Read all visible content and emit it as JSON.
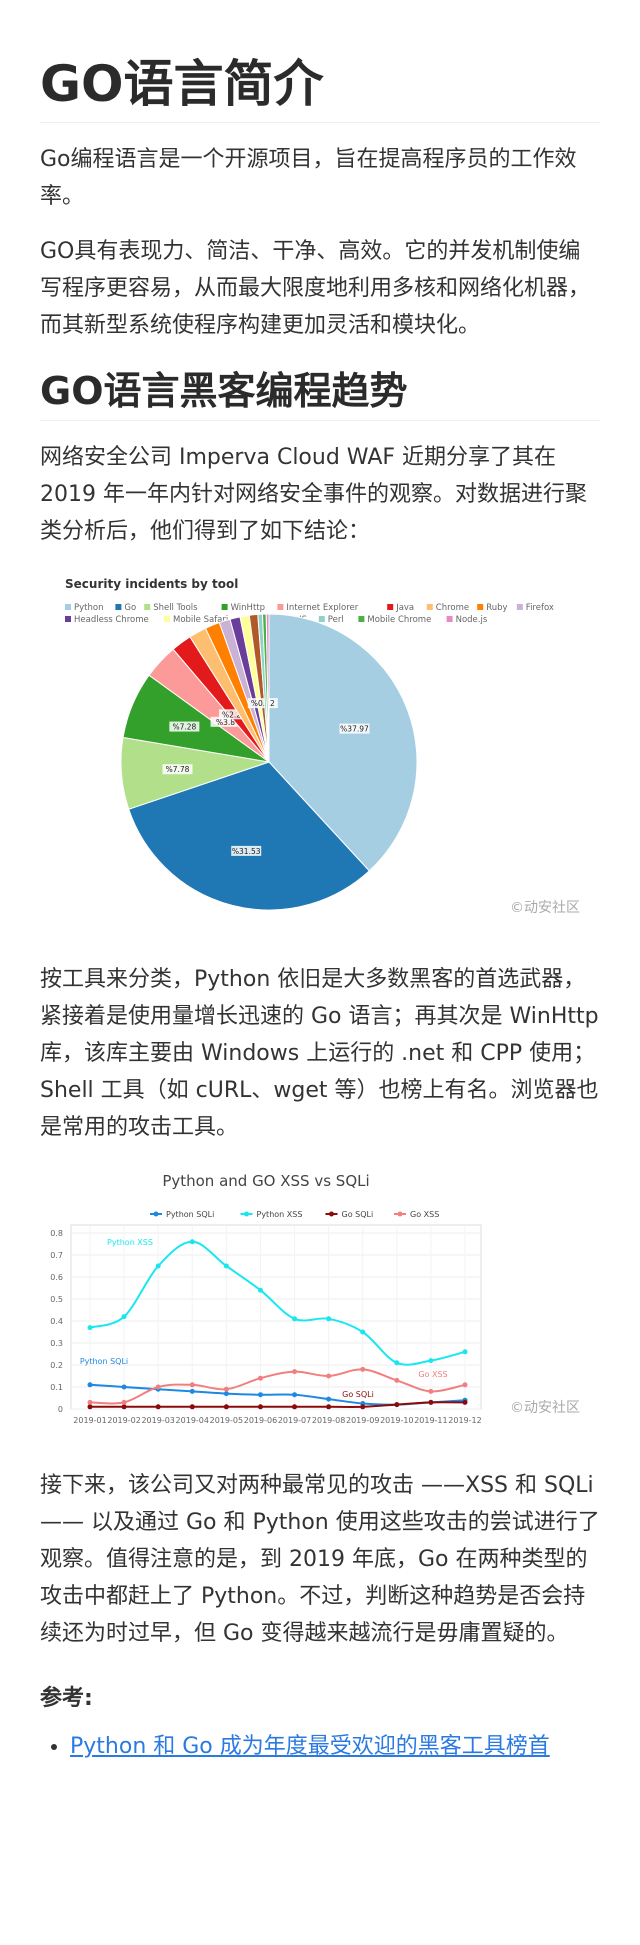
{
  "header": {
    "title": "GO语言简介"
  },
  "intro": [
    "Go编程语言是一个开源项目，旨在提高程序员的工作效率。",
    "GO具有表现力、简洁、干净、高效。它的并发机制使编写程序更容易，从而最大限度地利用多核和网络化机器，而其新型系统使程序构建更加灵活和模块化。"
  ],
  "section": {
    "title": "GO语言黑客编程趋势",
    "paragraphs": [
      "网络安全公司 Imperva Cloud WAF 近期分享了其在 2019 年一年内针对网络安全事件的观察。对数据进行聚类分析后，他们得到了如下结论：",
      "按工具来分类，Python 依旧是大多数黑客的首选武器，紧接着是使用量增长迅速的 Go 语言；再其次是 WinHttp 库，该库主要由 Windows 上运行的 .net 和 CPP 使用；Shell 工具（如 cURL、wget 等）也榜上有名。浏览器也是常用的攻击工具。",
      "接下来，该公司又对两种最常见的攻击 ——XSS 和 SQLi—— 以及通过 Go 和 Python 使用这些攻击的尝试进行了观察。值得注意的是，到 2019 年底，Go 在两种类型的攻击中都赶上了 Python。不过，判断这种趋势是否会持续还为时过早，但 Go 变得越来越流行是毋庸置疑的。"
    ]
  },
  "chart_data": [
    {
      "type": "pie",
      "title": "Security incidents by tool",
      "categories": [
        "Python",
        "Go",
        "Shell Tools",
        "WinHttp",
        "Internet Explorer",
        "Java",
        "Chrome",
        "Ruby",
        "Firefox",
        "Headless Chrome",
        "Mobile Safari",
        "PhantomJS",
        "Perl",
        "Mobile Chrome",
        "Node.js"
      ],
      "values": [
        37.97,
        31.53,
        7.78,
        7.28,
        3.8,
        2.24,
        1.9,
        1.6,
        1.2,
        1.1,
        1.0,
        0.92,
        0.5,
        0.4,
        0.3
      ],
      "value_labels": [
        "%37.97",
        "%31.53",
        "%7.78",
        "%7.28",
        "%3.8",
        "%2.24",
        null,
        null,
        null,
        null,
        null,
        "%0.92",
        null,
        null,
        null
      ],
      "colors": [
        "#a6cee3",
        "#1f78b4",
        "#b2df8a",
        "#33a02c",
        "#fb9a99",
        "#e31a1c",
        "#fdbf6f",
        "#ff7f00",
        "#cab2d6",
        "#6a3d9a",
        "#ffff99",
        "#b15928",
        "#8dd3c7",
        "#4daf4a",
        "#e78ac3"
      ],
      "watermark": "©动安社区"
    },
    {
      "type": "line",
      "title": "Python and GO XSS vs SQLi",
      "x": [
        "2019-01",
        "2019-02",
        "2019-03",
        "2019-04",
        "2019-05",
        "2019-06",
        "2019-07",
        "2019-08",
        "2019-09",
        "2019-10",
        "2019-11",
        "2019-12"
      ],
      "series": [
        {
          "name": "Python SQLi",
          "color": "#1e88e5",
          "values": [
            0.11,
            0.1,
            0.09,
            0.08,
            0.07,
            0.065,
            0.065,
            0.045,
            0.025,
            0.02,
            0.03,
            0.04
          ]
        },
        {
          "name": "Python XSS",
          "color": "#18e7f0",
          "values": [
            0.37,
            0.42,
            0.65,
            0.76,
            0.65,
            0.54,
            0.41,
            0.41,
            0.35,
            0.21,
            0.22,
            0.26
          ]
        },
        {
          "name": "Go SQLi",
          "color": "#8b0a0a",
          "values": [
            0.01,
            0.01,
            0.01,
            0.01,
            0.01,
            0.01,
            0.01,
            0.01,
            0.01,
            0.02,
            0.03,
            0.03
          ]
        },
        {
          "name": "Go XSS",
          "color": "#f08080",
          "values": [
            0.03,
            0.03,
            0.1,
            0.11,
            0.09,
            0.14,
            0.17,
            0.15,
            0.18,
            0.13,
            0.08,
            0.11
          ]
        }
      ],
      "ylim": [
        0,
        0.8
      ],
      "yticks": [
        0,
        0.1,
        0.2,
        0.3,
        0.4,
        0.5,
        0.6,
        0.7,
        0.8
      ],
      "grid": true,
      "annotations": [
        "Python SQLi",
        "Python XSS",
        "Go SQLi",
        "Go XSS"
      ],
      "watermark": "©动安社区"
    }
  ],
  "references": {
    "title": "参考:",
    "links": [
      "Python 和 Go 成为年度最受欢迎的黑客工具榜首"
    ]
  }
}
